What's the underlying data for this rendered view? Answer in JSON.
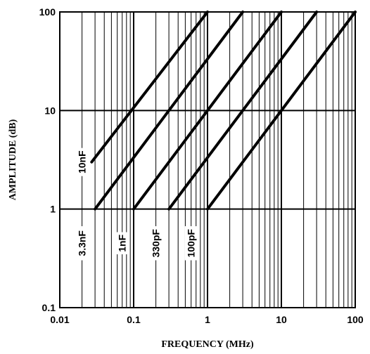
{
  "chart_data": {
    "type": "line",
    "xlabel": "FREQUENCY (MHz)",
    "ylabel": "AMPLITUDE (dB)",
    "xscale": "log",
    "yscale": "log",
    "xlim": [
      0.01,
      100
    ],
    "ylim": [
      0.1,
      100
    ],
    "grid": true,
    "x_ticks": [
      "0.01",
      "0.1",
      "1",
      "10",
      "100"
    ],
    "y_ticks": [
      "0.1",
      "1",
      "10",
      "100"
    ],
    "series": [
      {
        "name": "10nF",
        "x": [
          0.027,
          1.0
        ],
        "y": [
          3.0,
          100
        ]
      },
      {
        "name": "3.3nF",
        "x": [
          0.03,
          3.0
        ],
        "y": [
          1.0,
          100
        ]
      },
      {
        "name": "1nF",
        "x": [
          0.1,
          10.0
        ],
        "y": [
          1.0,
          100
        ]
      },
      {
        "name": "330pF",
        "x": [
          0.3,
          30.0
        ],
        "y": [
          1.0,
          100
        ]
      },
      {
        "name": "100pF",
        "x": [
          1.0,
          100.0
        ],
        "y": [
          1.0,
          100
        ]
      }
    ]
  }
}
